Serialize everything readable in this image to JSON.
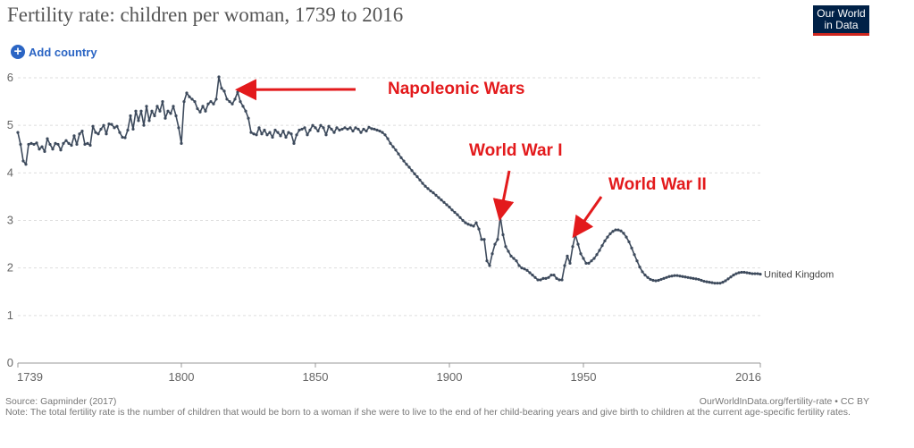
{
  "header": {
    "title": "Fertility rate: children per woman, 1739 to 2016",
    "logo_line1": "Our World",
    "logo_line2": "in Data",
    "add_country": "Add country"
  },
  "footer": {
    "source": "Source: Gapminder (2017)",
    "note": "Note: The total fertility rate is the number of children that would be born to a woman if she were to live to the end of her child-bearing years and give birth to children at the current age-specific fertility rates.",
    "credit": "OurWorldInData.org/fertility-rate • CC BY"
  },
  "colors": {
    "series": "#3d4a5c",
    "annotation": "#e31a1c",
    "grid": "#dddddd",
    "axis_text": "#666666"
  },
  "chart_data": {
    "type": "line",
    "title": "Fertility rate: children per woman, 1739 to 2016",
    "xlabel": "",
    "ylabel": "",
    "xlim": [
      1739,
      2016
    ],
    "ylim": [
      0,
      6
    ],
    "yticks": [
      0,
      1,
      2,
      3,
      4,
      5,
      6
    ],
    "xticks": [
      1739,
      1800,
      1850,
      1900,
      1950,
      2016
    ],
    "grid": true,
    "series": [
      {
        "name": "United Kingdom",
        "points": [
          [
            1739,
            4.85
          ],
          [
            1740,
            4.6
          ],
          [
            1741,
            4.25
          ],
          [
            1742,
            4.18
          ],
          [
            1743,
            4.6
          ],
          [
            1744,
            4.62
          ],
          [
            1745,
            4.6
          ],
          [
            1746,
            4.63
          ],
          [
            1747,
            4.5
          ],
          [
            1748,
            4.55
          ],
          [
            1749,
            4.45
          ],
          [
            1750,
            4.72
          ],
          [
            1751,
            4.6
          ],
          [
            1752,
            4.5
          ],
          [
            1753,
            4.62
          ],
          [
            1754,
            4.6
          ],
          [
            1755,
            4.48
          ],
          [
            1756,
            4.62
          ],
          [
            1757,
            4.68
          ],
          [
            1758,
            4.62
          ],
          [
            1759,
            4.58
          ],
          [
            1760,
            4.78
          ],
          [
            1761,
            4.6
          ],
          [
            1762,
            4.82
          ],
          [
            1763,
            4.88
          ],
          [
            1764,
            4.6
          ],
          [
            1765,
            4.62
          ],
          [
            1766,
            4.58
          ],
          [
            1767,
            4.98
          ],
          [
            1768,
            4.85
          ],
          [
            1769,
            4.82
          ],
          [
            1770,
            4.92
          ],
          [
            1771,
            5.0
          ],
          [
            1772,
            4.82
          ],
          [
            1773,
            5.03
          ],
          [
            1774,
            5.02
          ],
          [
            1775,
            4.95
          ],
          [
            1776,
            4.98
          ],
          [
            1777,
            4.85
          ],
          [
            1778,
            4.75
          ],
          [
            1779,
            4.74
          ],
          [
            1780,
            4.9
          ],
          [
            1781,
            5.2
          ],
          [
            1782,
            4.92
          ],
          [
            1783,
            5.3
          ],
          [
            1784,
            5.1
          ],
          [
            1785,
            5.3
          ],
          [
            1786,
            5.0
          ],
          [
            1787,
            5.4
          ],
          [
            1788,
            5.1
          ],
          [
            1789,
            5.3
          ],
          [
            1790,
            5.2
          ],
          [
            1791,
            5.4
          ],
          [
            1792,
            5.3
          ],
          [
            1793,
            5.5
          ],
          [
            1794,
            5.15
          ],
          [
            1795,
            5.3
          ],
          [
            1796,
            5.25
          ],
          [
            1797,
            5.4
          ],
          [
            1798,
            5.2
          ],
          [
            1799,
            4.95
          ],
          [
            1800,
            4.62
          ],
          [
            1801,
            5.5
          ],
          [
            1802,
            5.68
          ],
          [
            1803,
            5.6
          ],
          [
            1804,
            5.55
          ],
          [
            1805,
            5.5
          ],
          [
            1806,
            5.35
          ],
          [
            1807,
            5.28
          ],
          [
            1808,
            5.4
          ],
          [
            1809,
            5.3
          ],
          [
            1810,
            5.45
          ],
          [
            1811,
            5.5
          ],
          [
            1812,
            5.45
          ],
          [
            1813,
            5.55
          ],
          [
            1814,
            6.02
          ],
          [
            1815,
            5.78
          ],
          [
            1816,
            5.72
          ],
          [
            1817,
            5.55
          ],
          [
            1818,
            5.5
          ],
          [
            1819,
            5.45
          ],
          [
            1820,
            5.55
          ],
          [
            1821,
            5.7
          ],
          [
            1822,
            5.5
          ],
          [
            1823,
            5.4
          ],
          [
            1824,
            5.3
          ],
          [
            1825,
            5.15
          ],
          [
            1826,
            4.85
          ],
          [
            1827,
            4.82
          ],
          [
            1828,
            4.8
          ],
          [
            1829,
            4.95
          ],
          [
            1830,
            4.82
          ],
          [
            1831,
            4.9
          ],
          [
            1832,
            4.8
          ],
          [
            1833,
            4.85
          ],
          [
            1834,
            4.75
          ],
          [
            1835,
            4.9
          ],
          [
            1836,
            4.85
          ],
          [
            1837,
            4.78
          ],
          [
            1838,
            4.88
          ],
          [
            1839,
            4.75
          ],
          [
            1840,
            4.85
          ],
          [
            1841,
            4.82
          ],
          [
            1842,
            4.62
          ],
          [
            1843,
            4.8
          ],
          [
            1844,
            4.9
          ],
          [
            1845,
            4.92
          ],
          [
            1846,
            4.95
          ],
          [
            1847,
            4.8
          ],
          [
            1848,
            4.9
          ],
          [
            1849,
            5.0
          ],
          [
            1850,
            4.95
          ],
          [
            1851,
            4.88
          ],
          [
            1852,
            5.0
          ],
          [
            1853,
            4.95
          ],
          [
            1854,
            4.8
          ],
          [
            1855,
            4.98
          ],
          [
            1856,
            4.92
          ],
          [
            1857,
            4.85
          ],
          [
            1858,
            4.95
          ],
          [
            1859,
            4.9
          ],
          [
            1860,
            4.92
          ],
          [
            1861,
            4.95
          ],
          [
            1862,
            4.92
          ],
          [
            1863,
            4.95
          ],
          [
            1864,
            4.88
          ],
          [
            1865,
            4.95
          ],
          [
            1866,
            4.92
          ],
          [
            1867,
            4.85
          ],
          [
            1868,
            4.92
          ],
          [
            1869,
            4.88
          ],
          [
            1870,
            4.96
          ],
          [
            1871,
            4.93
          ],
          [
            1872,
            4.92
          ],
          [
            1873,
            4.9
          ],
          [
            1874,
            4.88
          ],
          [
            1875,
            4.85
          ],
          [
            1876,
            4.8
          ],
          [
            1877,
            4.72
          ],
          [
            1878,
            4.62
          ],
          [
            1879,
            4.55
          ],
          [
            1880,
            4.48
          ],
          [
            1881,
            4.4
          ],
          [
            1882,
            4.32
          ],
          [
            1883,
            4.25
          ],
          [
            1884,
            4.18
          ],
          [
            1885,
            4.12
          ],
          [
            1886,
            4.05
          ],
          [
            1887,
            3.98
          ],
          [
            1888,
            3.92
          ],
          [
            1889,
            3.85
          ],
          [
            1890,
            3.78
          ],
          [
            1891,
            3.72
          ],
          [
            1892,
            3.67
          ],
          [
            1893,
            3.62
          ],
          [
            1894,
            3.58
          ],
          [
            1895,
            3.53
          ],
          [
            1896,
            3.48
          ],
          [
            1897,
            3.43
          ],
          [
            1898,
            3.38
          ],
          [
            1899,
            3.33
          ],
          [
            1900,
            3.28
          ],
          [
            1901,
            3.22
          ],
          [
            1902,
            3.17
          ],
          [
            1903,
            3.12
          ],
          [
            1904,
            3.06
          ],
          [
            1905,
            3.0
          ],
          [
            1906,
            2.95
          ],
          [
            1907,
            2.92
          ],
          [
            1908,
            2.9
          ],
          [
            1909,
            2.88
          ],
          [
            1910,
            2.95
          ],
          [
            1911,
            2.82
          ],
          [
            1912,
            2.6
          ],
          [
            1913,
            2.6
          ],
          [
            1914,
            2.15
          ],
          [
            1915,
            2.05
          ],
          [
            1916,
            2.3
          ],
          [
            1917,
            2.5
          ],
          [
            1918,
            2.6
          ],
          [
            1919,
            3.08
          ],
          [
            1920,
            2.7
          ],
          [
            1921,
            2.45
          ],
          [
            1922,
            2.35
          ],
          [
            1923,
            2.25
          ],
          [
            1924,
            2.2
          ],
          [
            1925,
            2.15
          ],
          [
            1926,
            2.05
          ],
          [
            1927,
            2.0
          ],
          [
            1928,
            1.98
          ],
          [
            1929,
            1.95
          ],
          [
            1930,
            1.9
          ],
          [
            1931,
            1.85
          ],
          [
            1932,
            1.8
          ],
          [
            1933,
            1.75
          ],
          [
            1934,
            1.75
          ],
          [
            1935,
            1.78
          ],
          [
            1936,
            1.78
          ],
          [
            1937,
            1.8
          ],
          [
            1938,
            1.85
          ],
          [
            1939,
            1.85
          ],
          [
            1940,
            1.78
          ],
          [
            1941,
            1.75
          ],
          [
            1942,
            1.75
          ],
          [
            1943,
            2.05
          ],
          [
            1944,
            2.25
          ],
          [
            1945,
            2.1
          ],
          [
            1946,
            2.45
          ],
          [
            1947,
            2.7
          ],
          [
            1948,
            2.5
          ],
          [
            1949,
            2.3
          ],
          [
            1950,
            2.2
          ],
          [
            1951,
            2.1
          ],
          [
            1952,
            2.1
          ],
          [
            1953,
            2.15
          ],
          [
            1954,
            2.2
          ],
          [
            1955,
            2.28
          ],
          [
            1956,
            2.37
          ],
          [
            1957,
            2.47
          ],
          [
            1958,
            2.57
          ],
          [
            1959,
            2.65
          ],
          [
            1960,
            2.72
          ],
          [
            1961,
            2.77
          ],
          [
            1962,
            2.8
          ],
          [
            1963,
            2.8
          ],
          [
            1964,
            2.78
          ],
          [
            1965,
            2.73
          ],
          [
            1966,
            2.65
          ],
          [
            1967,
            2.55
          ],
          [
            1968,
            2.42
          ],
          [
            1969,
            2.28
          ],
          [
            1970,
            2.15
          ],
          [
            1971,
            2.02
          ],
          [
            1972,
            1.92
          ],
          [
            1973,
            1.85
          ],
          [
            1974,
            1.8
          ],
          [
            1975,
            1.76
          ],
          [
            1976,
            1.74
          ],
          [
            1977,
            1.73
          ],
          [
            1978,
            1.74
          ],
          [
            1979,
            1.76
          ],
          [
            1980,
            1.78
          ],
          [
            1981,
            1.8
          ],
          [
            1982,
            1.82
          ],
          [
            1983,
            1.83
          ],
          [
            1984,
            1.84
          ],
          [
            1985,
            1.84
          ],
          [
            1986,
            1.83
          ],
          [
            1987,
            1.82
          ],
          [
            1988,
            1.81
          ],
          [
            1989,
            1.8
          ],
          [
            1990,
            1.79
          ],
          [
            1991,
            1.78
          ],
          [
            1992,
            1.77
          ],
          [
            1993,
            1.76
          ],
          [
            1994,
            1.74
          ],
          [
            1995,
            1.72
          ],
          [
            1996,
            1.71
          ],
          [
            1997,
            1.7
          ],
          [
            1998,
            1.69
          ],
          [
            1999,
            1.68
          ],
          [
            2000,
            1.68
          ],
          [
            2001,
            1.68
          ],
          [
            2002,
            1.7
          ],
          [
            2003,
            1.73
          ],
          [
            2004,
            1.77
          ],
          [
            2005,
            1.81
          ],
          [
            2006,
            1.85
          ],
          [
            2007,
            1.88
          ],
          [
            2008,
            1.9
          ],
          [
            2009,
            1.91
          ],
          [
            2010,
            1.91
          ],
          [
            2011,
            1.9
          ],
          [
            2012,
            1.89
          ],
          [
            2013,
            1.88
          ],
          [
            2014,
            1.88
          ],
          [
            2015,
            1.88
          ],
          [
            2016,
            1.87
          ]
        ]
      }
    ],
    "annotations": [
      {
        "label": "Napoleonic Wars",
        "target": [
          1822,
          5.75
        ]
      },
      {
        "label": "World War I",
        "target": [
          1919,
          3.1
        ]
      },
      {
        "label": "World War II",
        "target": [
          1947,
          2.72
        ]
      }
    ]
  }
}
